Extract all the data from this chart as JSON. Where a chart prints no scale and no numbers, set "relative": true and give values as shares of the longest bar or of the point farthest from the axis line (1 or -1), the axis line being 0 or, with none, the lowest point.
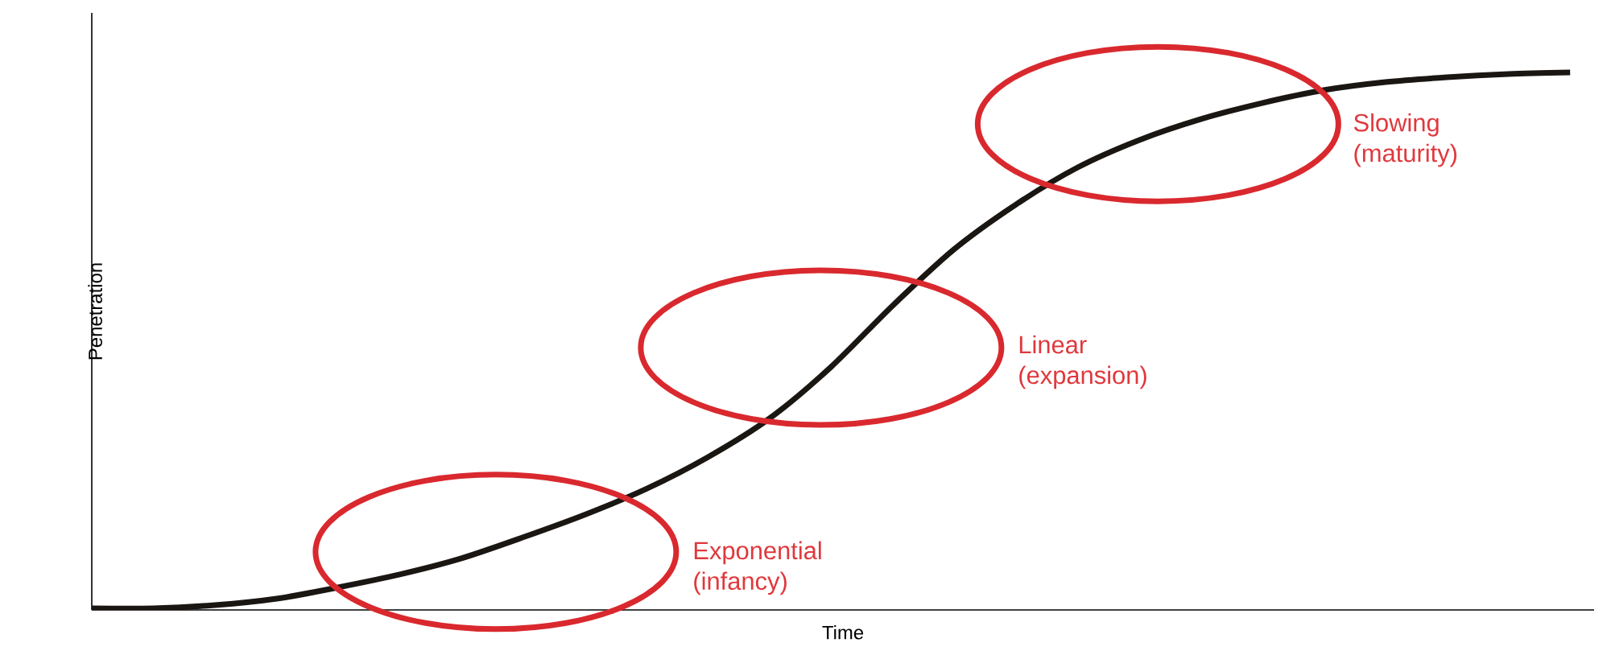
{
  "chart_data": {
    "type": "line",
    "relative": true,
    "xlabel": "Time",
    "ylabel": "Penetration",
    "categories": [
      null,
      null,
      null,
      null,
      null,
      null,
      null,
      null,
      null,
      null,
      null,
      null,
      null,
      null,
      null,
      null,
      null,
      null,
      null,
      null,
      null,
      null,
      null,
      null,
      null
    ],
    "series": [
      {
        "color": "#1a1612",
        "values": [
          0.003,
          0.003,
          0.009,
          0.021,
          0.042,
          0.066,
          0.096,
          0.135,
          0.177,
          0.225,
          0.284,
          0.356,
          0.452,
          0.566,
          0.671,
          0.754,
          0.823,
          0.874,
          0.913,
          0.943,
          0.967,
          0.982,
          0.991,
          0.997,
          1
        ]
      }
    ],
    "annotations": [
      "Exponential (infancy)",
      "Linear (expansion)",
      "Slowing (maturity)"
    ]
  }
}
